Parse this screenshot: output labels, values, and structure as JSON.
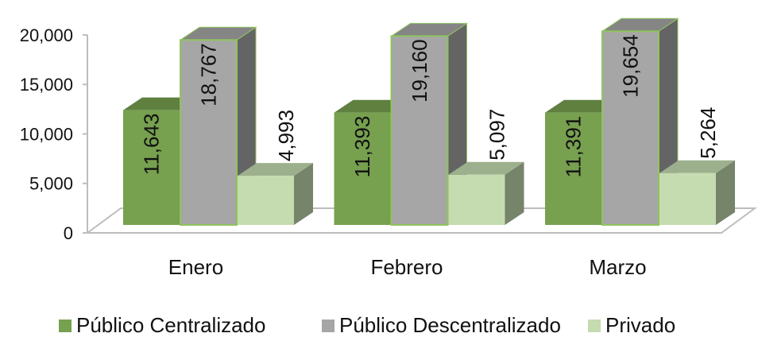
{
  "chart_data": {
    "type": "bar3d",
    "categories": [
      "Enero",
      "Febrero",
      "Marzo"
    ],
    "series": [
      {
        "name": "Público Centralizado",
        "color": "#77a04f",
        "values": [
          11643,
          11393,
          11391
        ],
        "value_labels": [
          "11,643",
          "11,393",
          "11,391"
        ]
      },
      {
        "name": "Público Descentralizado",
        "color": "#a6a6a6",
        "values": [
          18767,
          19160,
          19654
        ],
        "value_labels": [
          "18,767",
          "19,160",
          "19,654"
        ]
      },
      {
        "name": "Privado",
        "color": "#c4dcb0",
        "values": [
          4993,
          5097,
          5264
        ],
        "value_labels": [
          "4,993",
          "5,097",
          "5,264"
        ]
      }
    ],
    "ylim": [
      0,
      20000
    ],
    "yticks": [
      0,
      {
        "value": 5000,
        "label": "5,000"
      },
      {
        "value": 10000,
        "label": "10,000"
      },
      {
        "value": 15000,
        "label": "15,000"
      },
      {
        "value": 20000,
        "label": "20,000"
      }
    ],
    "legend": "bottom"
  }
}
